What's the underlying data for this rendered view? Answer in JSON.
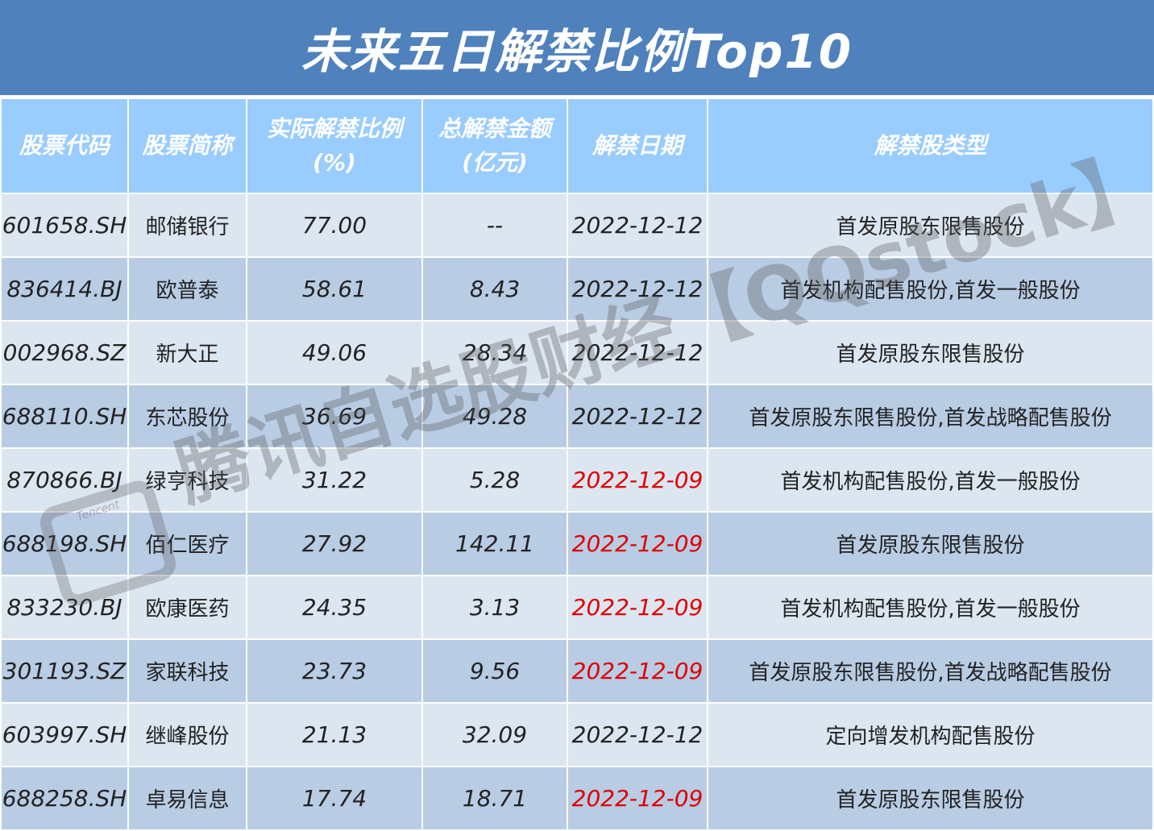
{
  "title": "未来五日解禁比例Top10",
  "headers": {
    "code": "股票代码",
    "name": "股票简称",
    "ratio_line1": "实际解禁比例",
    "ratio_line2": "(%)",
    "amount_line1": "总解禁金额",
    "amount_line2": "(亿元)",
    "date": "解禁日期",
    "type": "解禁股类型"
  },
  "rows": [
    {
      "code": "601658.SH",
      "name": "邮储银行",
      "ratio": "77.00",
      "amount": "--",
      "date": "2022-12-12",
      "date_highlight": false,
      "type": "首发原股东限售股份"
    },
    {
      "code": "836414.BJ",
      "name": "欧普泰",
      "ratio": "58.61",
      "amount": "8.43",
      "date": "2022-12-12",
      "date_highlight": false,
      "type": "首发机构配售股份,首发一般股份"
    },
    {
      "code": "002968.SZ",
      "name": "新大正",
      "ratio": "49.06",
      "amount": "28.34",
      "date": "2022-12-12",
      "date_highlight": false,
      "type": "首发原股东限售股份"
    },
    {
      "code": "688110.SH",
      "name": "东芯股份",
      "ratio": "36.69",
      "amount": "49.28",
      "date": "2022-12-12",
      "date_highlight": false,
      "type": "首发原股东限售股份,首发战略配售股份"
    },
    {
      "code": "870866.BJ",
      "name": "绿亨科技",
      "ratio": "31.22",
      "amount": "5.28",
      "date": "2022-12-09",
      "date_highlight": true,
      "type": "首发机构配售股份,首发一般股份"
    },
    {
      "code": "688198.SH",
      "name": "佰仁医疗",
      "ratio": "27.92",
      "amount": "142.11",
      "date": "2022-12-09",
      "date_highlight": true,
      "type": "首发原股东限售股份"
    },
    {
      "code": "833230.BJ",
      "name": "欧康医药",
      "ratio": "24.35",
      "amount": "3.13",
      "date": "2022-12-09",
      "date_highlight": true,
      "type": "首发机构配售股份,首发一般股份"
    },
    {
      "code": "301193.SZ",
      "name": "家联科技",
      "ratio": "23.73",
      "amount": "9.56",
      "date": "2022-12-09",
      "date_highlight": true,
      "type": "首发原股东限售股份,首发战略配售股份"
    },
    {
      "code": "603997.SH",
      "name": "继峰股份",
      "ratio": "21.13",
      "amount": "32.09",
      "date": "2022-12-12",
      "date_highlight": false,
      "type": "定向增发机构配售股份"
    },
    {
      "code": "688258.SH",
      "name": "卓易信息",
      "ratio": "17.74",
      "amount": "18.71",
      "date": "2022-12-09",
      "date_highlight": true,
      "type": "首发原股东限售股份"
    }
  ],
  "watermark": "腾讯自选股财经【QQstock】",
  "watermark_logo": "Tencent",
  "colors": {
    "title_bg": "#4f81bd",
    "header_bg": "#99ccff",
    "row_odd": "#dce6f1",
    "row_even": "#b8cce4",
    "date_highlight": "#e00000"
  }
}
